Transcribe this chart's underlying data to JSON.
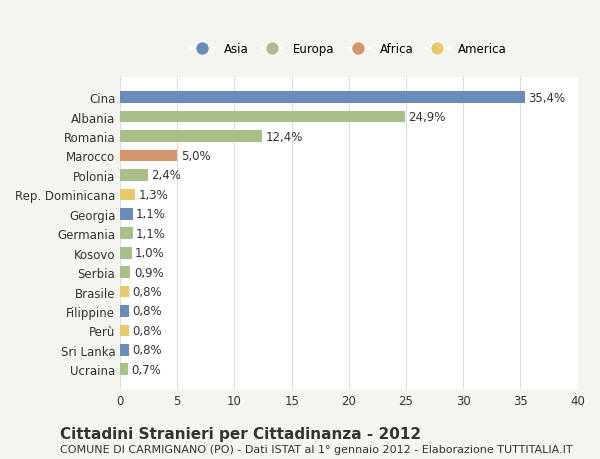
{
  "categories": [
    "Cina",
    "Albania",
    "Romania",
    "Marocco",
    "Polonia",
    "Rep. Dominicana",
    "Georgia",
    "Germania",
    "Kosovo",
    "Serbia",
    "Brasile",
    "Filippine",
    "Perù",
    "Sri Lanka",
    "Ucraina"
  ],
  "values": [
    35.4,
    24.9,
    12.4,
    5.0,
    2.4,
    1.3,
    1.1,
    1.1,
    1.0,
    0.9,
    0.8,
    0.8,
    0.8,
    0.8,
    0.7
  ],
  "labels": [
    "35,4%",
    "24,9%",
    "12,4%",
    "5,0%",
    "2,4%",
    "1,3%",
    "1,1%",
    "1,1%",
    "1,0%",
    "0,9%",
    "0,8%",
    "0,8%",
    "0,8%",
    "0,8%",
    "0,7%"
  ],
  "colors": [
    "#6b8cba",
    "#a8bf8a",
    "#a8bf8a",
    "#d4956a",
    "#a8bf8a",
    "#e8c96a",
    "#6b8cba",
    "#a8bf8a",
    "#a8bf8a",
    "#a8bf8a",
    "#e8c96a",
    "#6b8cba",
    "#e8c96a",
    "#6b8cba",
    "#a8bf8a"
  ],
  "legend_labels": [
    "Asia",
    "Europa",
    "Africa",
    "America"
  ],
  "legend_colors": [
    "#6b8cba",
    "#a8bf8a",
    "#d4956a",
    "#e8c96a"
  ],
  "title": "Cittadini Stranieri per Cittadinanza - 2012",
  "subtitle": "COMUNE DI CARMIGNANO (PO) - Dati ISTAT al 1° gennaio 2012 - Elaborazione TUTTITALIA.IT",
  "xlim": [
    0,
    40
  ],
  "xticks": [
    0,
    5,
    10,
    15,
    20,
    25,
    30,
    35,
    40
  ],
  "background_color": "#f5f5f0",
  "bar_background": "#ffffff",
  "grid_color": "#dddddd",
  "text_color": "#333333",
  "label_fontsize": 8.5,
  "title_fontsize": 11,
  "subtitle_fontsize": 8
}
